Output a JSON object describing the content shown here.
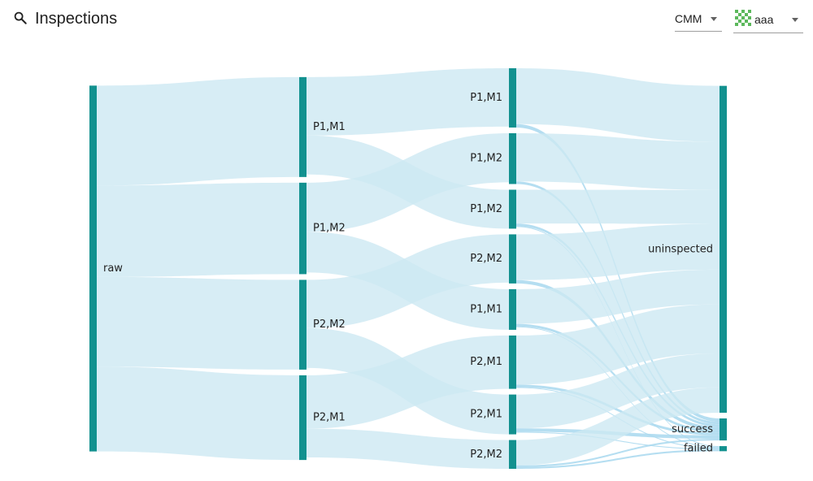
{
  "header": {
    "title": "Inspections",
    "search_icon": "search-icon",
    "selects": {
      "machine": {
        "value": "CMM"
      },
      "organization": {
        "value": "aaa",
        "avatar_icon": "identicon-avatar"
      }
    }
  },
  "colors": {
    "node": "#12918f",
    "link": "#cde9f3",
    "link_highlight": "#a8d8ee",
    "label": "#222222"
  },
  "chart_data": {
    "type": "sankey",
    "title": "",
    "columns": 4,
    "nodes": [
      {
        "id": "raw",
        "label": "raw",
        "column": 0
      },
      {
        "id": "c1_p1m1",
        "label": "P1,M1",
        "column": 1
      },
      {
        "id": "c1_p1m2",
        "label": "P1,M2",
        "column": 1
      },
      {
        "id": "c1_p2m2",
        "label": "P2,M2",
        "column": 1
      },
      {
        "id": "c1_p2m1",
        "label": "P2,M1",
        "column": 1
      },
      {
        "id": "c2_a",
        "label": "P1,M1",
        "column": 2
      },
      {
        "id": "c2_b",
        "label": "P1,M2",
        "column": 2
      },
      {
        "id": "c2_c",
        "label": "P1,M2",
        "column": 2
      },
      {
        "id": "c2_d",
        "label": "P2,M2",
        "column": 2
      },
      {
        "id": "c2_e",
        "label": "P1,M1",
        "column": 2
      },
      {
        "id": "c2_f",
        "label": "P2,M1",
        "column": 2
      },
      {
        "id": "c2_g",
        "label": "P2,M1",
        "column": 2
      },
      {
        "id": "c2_h",
        "label": "P2,M2",
        "column": 2
      },
      {
        "id": "uninspected",
        "label": "uninspected",
        "column": 3
      },
      {
        "id": "success",
        "label": "success",
        "column": 3
      },
      {
        "id": "failed",
        "label": "failed",
        "column": 3
      }
    ],
    "links": [
      {
        "source": "raw",
        "target": "c1_p1m1",
        "value": 118
      },
      {
        "source": "raw",
        "target": "c1_p1m2",
        "value": 108
      },
      {
        "source": "raw",
        "target": "c1_p2m2",
        "value": 106
      },
      {
        "source": "raw",
        "target": "c1_p2m1",
        "value": 100
      },
      {
        "source": "c1_p1m1",
        "target": "c2_a",
        "value": 69
      },
      {
        "source": "c1_p1m1",
        "target": "c2_c",
        "value": 46
      },
      {
        "source": "c1_p1m2",
        "target": "c2_b",
        "value": 58
      },
      {
        "source": "c1_p1m2",
        "target": "c2_e",
        "value": 48
      },
      {
        "source": "c1_p2m2",
        "target": "c2_d",
        "value": 57
      },
      {
        "source": "c1_p2m2",
        "target": "c2_g",
        "value": 47
      },
      {
        "source": "c1_p2m1",
        "target": "c2_f",
        "value": 63
      },
      {
        "source": "c1_p2m1",
        "target": "c2_h",
        "value": 34
      },
      {
        "source": "c2_a",
        "target": "uninspected",
        "value": 66
      },
      {
        "source": "c2_a",
        "target": "success",
        "value": 4
      },
      {
        "source": "c2_b",
        "target": "uninspected",
        "value": 57
      },
      {
        "source": "c2_b",
        "target": "success",
        "value": 3
      },
      {
        "source": "c2_c",
        "target": "uninspected",
        "value": 40
      },
      {
        "source": "c2_c",
        "target": "success",
        "value": 3
      },
      {
        "source": "c2_c",
        "target": "failed",
        "value": 1
      },
      {
        "source": "c2_d",
        "target": "uninspected",
        "value": 54
      },
      {
        "source": "c2_d",
        "target": "success",
        "value": 4
      },
      {
        "source": "c2_e",
        "target": "uninspected",
        "value": 41
      },
      {
        "source": "c2_e",
        "target": "success",
        "value": 3
      },
      {
        "source": "c2_e",
        "target": "failed",
        "value": 1
      },
      {
        "source": "c2_f",
        "target": "uninspected",
        "value": 58
      },
      {
        "source": "c2_f",
        "target": "success",
        "value": 3
      },
      {
        "source": "c2_f",
        "target": "failed",
        "value": 1
      },
      {
        "source": "c2_g",
        "target": "uninspected",
        "value": 40
      },
      {
        "source": "c2_g",
        "target": "success",
        "value": 4
      },
      {
        "source": "c2_g",
        "target": "failed",
        "value": 1
      },
      {
        "source": "c2_h",
        "target": "uninspected",
        "value": 30
      },
      {
        "source": "c2_h",
        "target": "success",
        "value": 2
      },
      {
        "source": "c2_h",
        "target": "failed",
        "value": 2
      }
    ]
  }
}
